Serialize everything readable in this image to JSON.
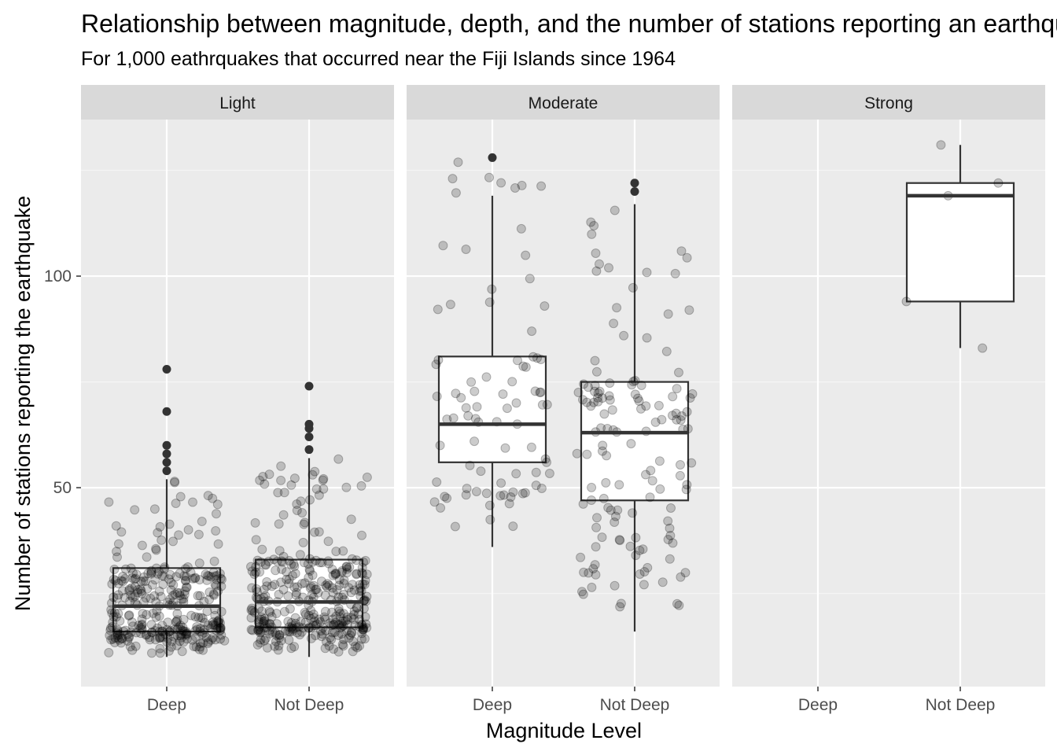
{
  "chart_data": {
    "type": "boxplot",
    "title": "Relationship between magnitude, depth, and the number of stations reporting an earthquake",
    "subtitle": "For 1,000 eathrquakes that occurred near the Fiji Islands since 1964",
    "xlabel": "Magnitude Level",
    "ylabel": "Number of stations reporting the earthquake",
    "ylim": [
      3,
      137
    ],
    "yticks": [
      50,
      100
    ],
    "grid": true,
    "categories": [
      "Deep",
      "Not Deep"
    ],
    "facets": [
      {
        "label": "Light",
        "boxes": [
          {
            "category": "Deep",
            "min": 10,
            "q1": 16,
            "median": 22,
            "q3": 31,
            "max": 52,
            "outliers": [
              54,
              56,
              58,
              60,
              68,
              78
            ],
            "jitter": {
              "n": 330,
              "min": 10,
              "max": 52
            }
          },
          {
            "category": "Not Deep",
            "min": 10,
            "q1": 17,
            "median": 23,
            "q3": 33,
            "max": 57,
            "outliers": [
              59,
              62,
              64,
              65,
              74
            ],
            "jitter": {
              "n": 360,
              "min": 10,
              "max": 57
            }
          }
        ]
      },
      {
        "label": "Moderate",
        "boxes": [
          {
            "category": "Deep",
            "min": 36,
            "q1": 56,
            "median": 65,
            "q3": 81,
            "max": 119,
            "outliers": [
              128
            ],
            "jitter": {
              "n": 85,
              "min": 36,
              "max": 128
            }
          },
          {
            "category": "Not Deep",
            "min": 16,
            "q1": 47,
            "median": 63,
            "q3": 75,
            "max": 117,
            "outliers": [
              120,
              122
            ],
            "jitter": {
              "n": 140,
              "min": 16,
              "max": 122
            }
          }
        ]
      },
      {
        "label": "Strong",
        "boxes": [
          {
            "category": "Not Deep",
            "min": 83,
            "q1": 94,
            "median": 119,
            "q3": 122,
            "max": 131,
            "outliers": [],
            "points": [
              131,
              122,
              119,
              94,
              83
            ]
          }
        ]
      }
    ]
  }
}
